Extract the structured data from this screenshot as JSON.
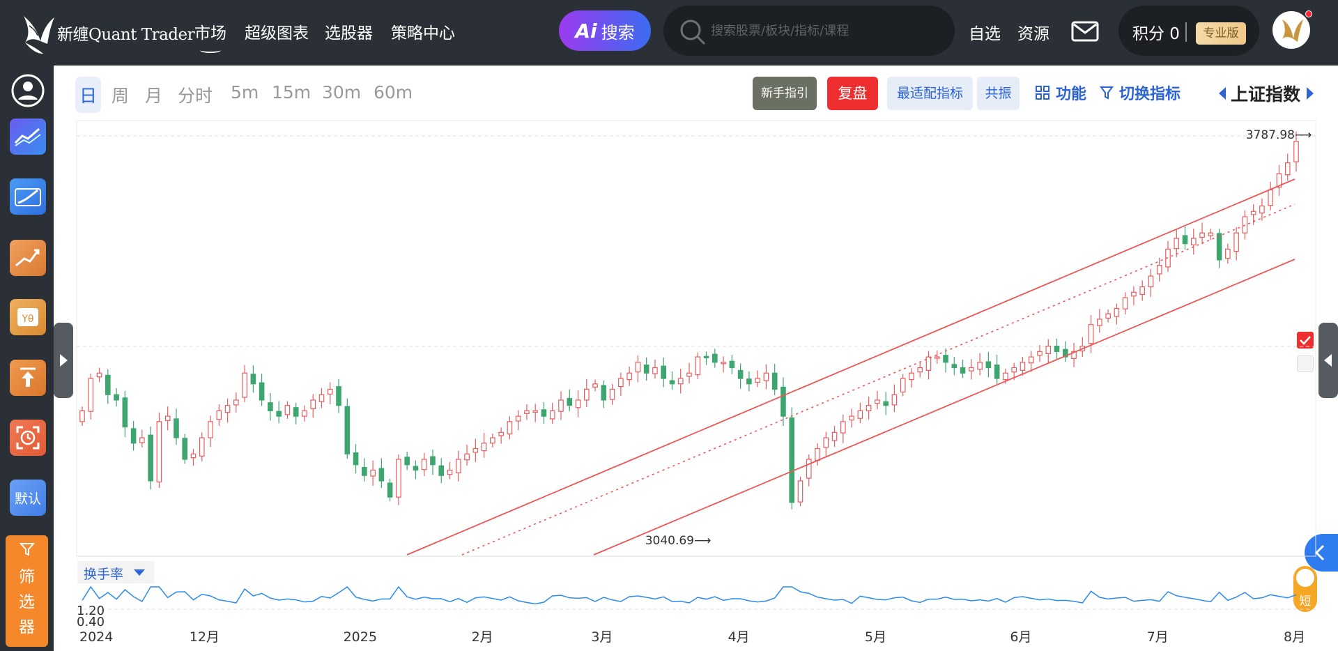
{
  "header": {
    "logo_text": "新缠Quant Trader",
    "nav": [
      "市场",
      "超级图表",
      "选股器",
      "策略中心"
    ],
    "ai_label": "搜索",
    "search_placeholder": "搜索股票/板块/指标/课程",
    "links": [
      "自选",
      "资源"
    ],
    "points_label": "积分 0",
    "pro_badge": "专业版"
  },
  "sidebar": {
    "icons": [
      "user-circle-icon",
      "line-chart-icon",
      "tv-chart-icon",
      "trend-up-icon",
      "formula-icon",
      "upload-icon",
      "clock-frame-icon",
      "default-icon"
    ],
    "default_label": "默认",
    "filter_label": [
      "筛",
      "选",
      "器"
    ]
  },
  "toolbar": {
    "periods": [
      "日",
      "周",
      "月",
      "分时",
      "5m",
      "15m",
      "30m",
      "60m"
    ],
    "active_period": "日",
    "guide_button": "新手指引",
    "review_button": "复盘",
    "best_indicator_button": "最适配指标",
    "resonance_button": "共振",
    "function_label": "功能",
    "switch_indicator_label": "切换指标",
    "index_name": "上证指数"
  },
  "chart_data": {
    "type": "candlestick",
    "max_label": "3787.98",
    "min_label": "3040.69",
    "sub_indicator": "换手率",
    "sub_ticks": [
      "1.20",
      "0.40"
    ],
    "short_label": "短",
    "x_ticks": [
      "2024",
      "12月",
      "2025",
      "2月",
      "3月",
      "4月",
      "5月",
      "6月",
      "7月",
      "8月"
    ],
    "closes": [
      3280,
      3340,
      3350,
      3310,
      3300,
      3250,
      3220,
      3230,
      3150,
      3260,
      3270,
      3230,
      3190,
      3200,
      3230,
      3260,
      3280,
      3290,
      3300,
      3350,
      3330,
      3300,
      3280,
      3270,
      3290,
      3270,
      3280,
      3300,
      3310,
      3320,
      3290,
      3200,
      3180,
      3160,
      3170,
      3150,
      3120,
      3190,
      3180,
      3170,
      3190,
      3180,
      3160,
      3170,
      3190,
      3200,
      3210,
      3220,
      3230,
      3240,
      3260,
      3270,
      3280,
      3280,
      3270,
      3280,
      3300,
      3290,
      3300,
      3320,
      3330,
      3300,
      3320,
      3340,
      3350,
      3370,
      3350,
      3360,
      3340,
      3330,
      3340,
      3350,
      3380,
      3380,
      3370,
      3370,
      3360,
      3340,
      3330,
      3340,
      3350,
      3320,
      3270,
      3110,
      3150,
      3190,
      3210,
      3230,
      3240,
      3260,
      3270,
      3280,
      3290,
      3300,
      3290,
      3310,
      3340,
      3350,
      3360,
      3380,
      3380,
      3370,
      3360,
      3350,
      3360,
      3370,
      3360,
      3340,
      3350,
      3360,
      3370,
      3380,
      3390,
      3400,
      3390,
      3380,
      3390,
      3400,
      3440,
      3450,
      3460,
      3470,
      3490,
      3500,
      3510,
      3530,
      3550,
      3580,
      3600,
      3590,
      3600,
      3610,
      3610,
      3560,
      3580,
      3610,
      3640,
      3650,
      3660,
      3690,
      3720,
      3740,
      3780
    ]
  }
}
